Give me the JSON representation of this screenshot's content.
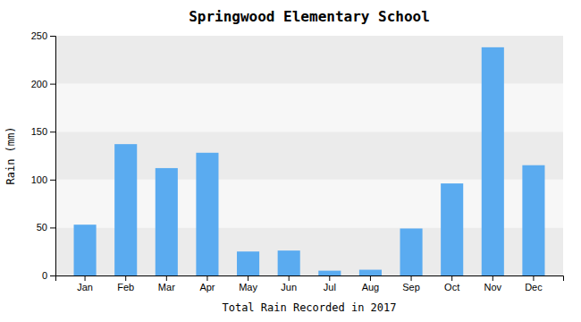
{
  "chart_data": {
    "type": "bar",
    "title": "Springwood Elementary School",
    "xlabel": "Total Rain Recorded in 2017",
    "ylabel": "Rain (mm)",
    "categories": [
      "Jan",
      "Feb",
      "Mar",
      "Apr",
      "May",
      "Jun",
      "Jul",
      "Aug",
      "Sep",
      "Oct",
      "Nov",
      "Dec"
    ],
    "values": [
      53,
      137,
      112,
      128,
      25,
      26,
      5,
      6,
      49,
      96,
      238,
      115
    ],
    "color": "#5aabf0",
    "ylim": [
      0,
      250
    ],
    "yticks": [
      0,
      50,
      100,
      150,
      200,
      250
    ],
    "grid": true
  }
}
